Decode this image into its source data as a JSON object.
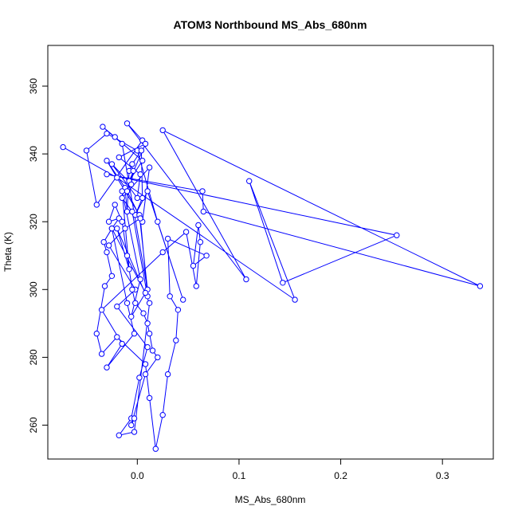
{
  "chart_data": {
    "type": "line",
    "title": "ATOM3 Northbound MS_Abs_680nm",
    "xlabel": "MS_Abs_680nm",
    "ylabel": "Theta (K)",
    "xlim": [
      -0.088,
      0.35
    ],
    "ylim": [
      250,
      372
    ],
    "xticks": [
      0.0,
      0.1,
      0.2,
      0.3
    ],
    "xtick_labels": [
      "0.0",
      "0.1",
      "0.2",
      "0.3"
    ],
    "yticks": [
      260,
      280,
      300,
      320,
      340,
      360
    ],
    "ytick_labels": [
      "260",
      "280",
      "300",
      "320",
      "340",
      "360"
    ],
    "grid": false,
    "legend": "none",
    "series": [
      {
        "color": "#0000ff",
        "marker": "open-circle",
        "x": [
          -0.073,
          -0.02,
          0.155,
          0.11,
          0.143,
          0.255,
          -0.03,
          0.064,
          0.065,
          0.337,
          0.025,
          0.107,
          -0.01,
          0.005,
          -0.04,
          -0.05,
          -0.03,
          0.0,
          0.02,
          0.045,
          0.01,
          -0.002,
          0.005,
          0.004,
          -0.005,
          -0.008,
          -0.01,
          -0.012,
          -0.03,
          0.002,
          0.01,
          -0.015,
          -0.034,
          -0.022,
          0.005,
          -0.008,
          0.008,
          -0.018,
          0.003,
          0.0,
          -0.025,
          -0.006,
          -0.004,
          -0.01,
          0.005,
          0.012,
          -0.015,
          -0.005,
          0.01,
          0.003,
          -0.012,
          -0.028,
          -0.002,
          -0.02,
          0.01,
          0.002,
          -0.006,
          -0.018,
          -0.003,
          0.012,
          -0.02,
          -0.008,
          -0.015,
          0.003,
          -0.006,
          0.008,
          -0.025,
          -0.01,
          -0.003,
          -0.03,
          -0.015,
          -0.035,
          0.025,
          0.048,
          0.058,
          0.062,
          0.06,
          0.055,
          0.068,
          0.03,
          0.032,
          0.04,
          0.038,
          0.03,
          0.025,
          0.018,
          0.012,
          0.008,
          -0.02,
          -0.035,
          -0.04,
          -0.032,
          -0.025,
          -0.03,
          -0.033,
          -0.025,
          -0.018,
          -0.028,
          -0.022,
          -0.015,
          -0.01,
          -0.005,
          -0.002,
          0.006,
          0.01,
          0.012,
          0.015,
          0.02,
          0.008,
          -0.006,
          -0.003
        ],
        "y": [
          342,
          333,
          297,
          332,
          302,
          316,
          334,
          329,
          323,
          301,
          347,
          303,
          349,
          344,
          325,
          341,
          346,
          341,
          320,
          297,
          329,
          322,
          327,
          341,
          337,
          335,
          323,
          330,
          338,
          322,
          300,
          343,
          348,
          345,
          338,
          332,
          343,
          339,
          334,
          327,
          337,
          331,
          335,
          329,
          320,
          336,
          327,
          323,
          298,
          321,
          318,
          313,
          300,
          295,
          283,
          274,
          262,
          257,
          258,
          296,
          318,
          306,
          329,
          303,
          292,
          299,
          318,
          296,
          287,
          277,
          284,
          294,
          311,
          317,
          301,
          314,
          319,
          307,
          310,
          315,
          298,
          294,
          285,
          275,
          263,
          253,
          268,
          278,
          286,
          281,
          287,
          301,
          304,
          311,
          314,
          318,
          321,
          320,
          325,
          320,
          310,
          300,
          296,
          293,
          290,
          287,
          282,
          280,
          275,
          260,
          262
        ]
      }
    ]
  }
}
